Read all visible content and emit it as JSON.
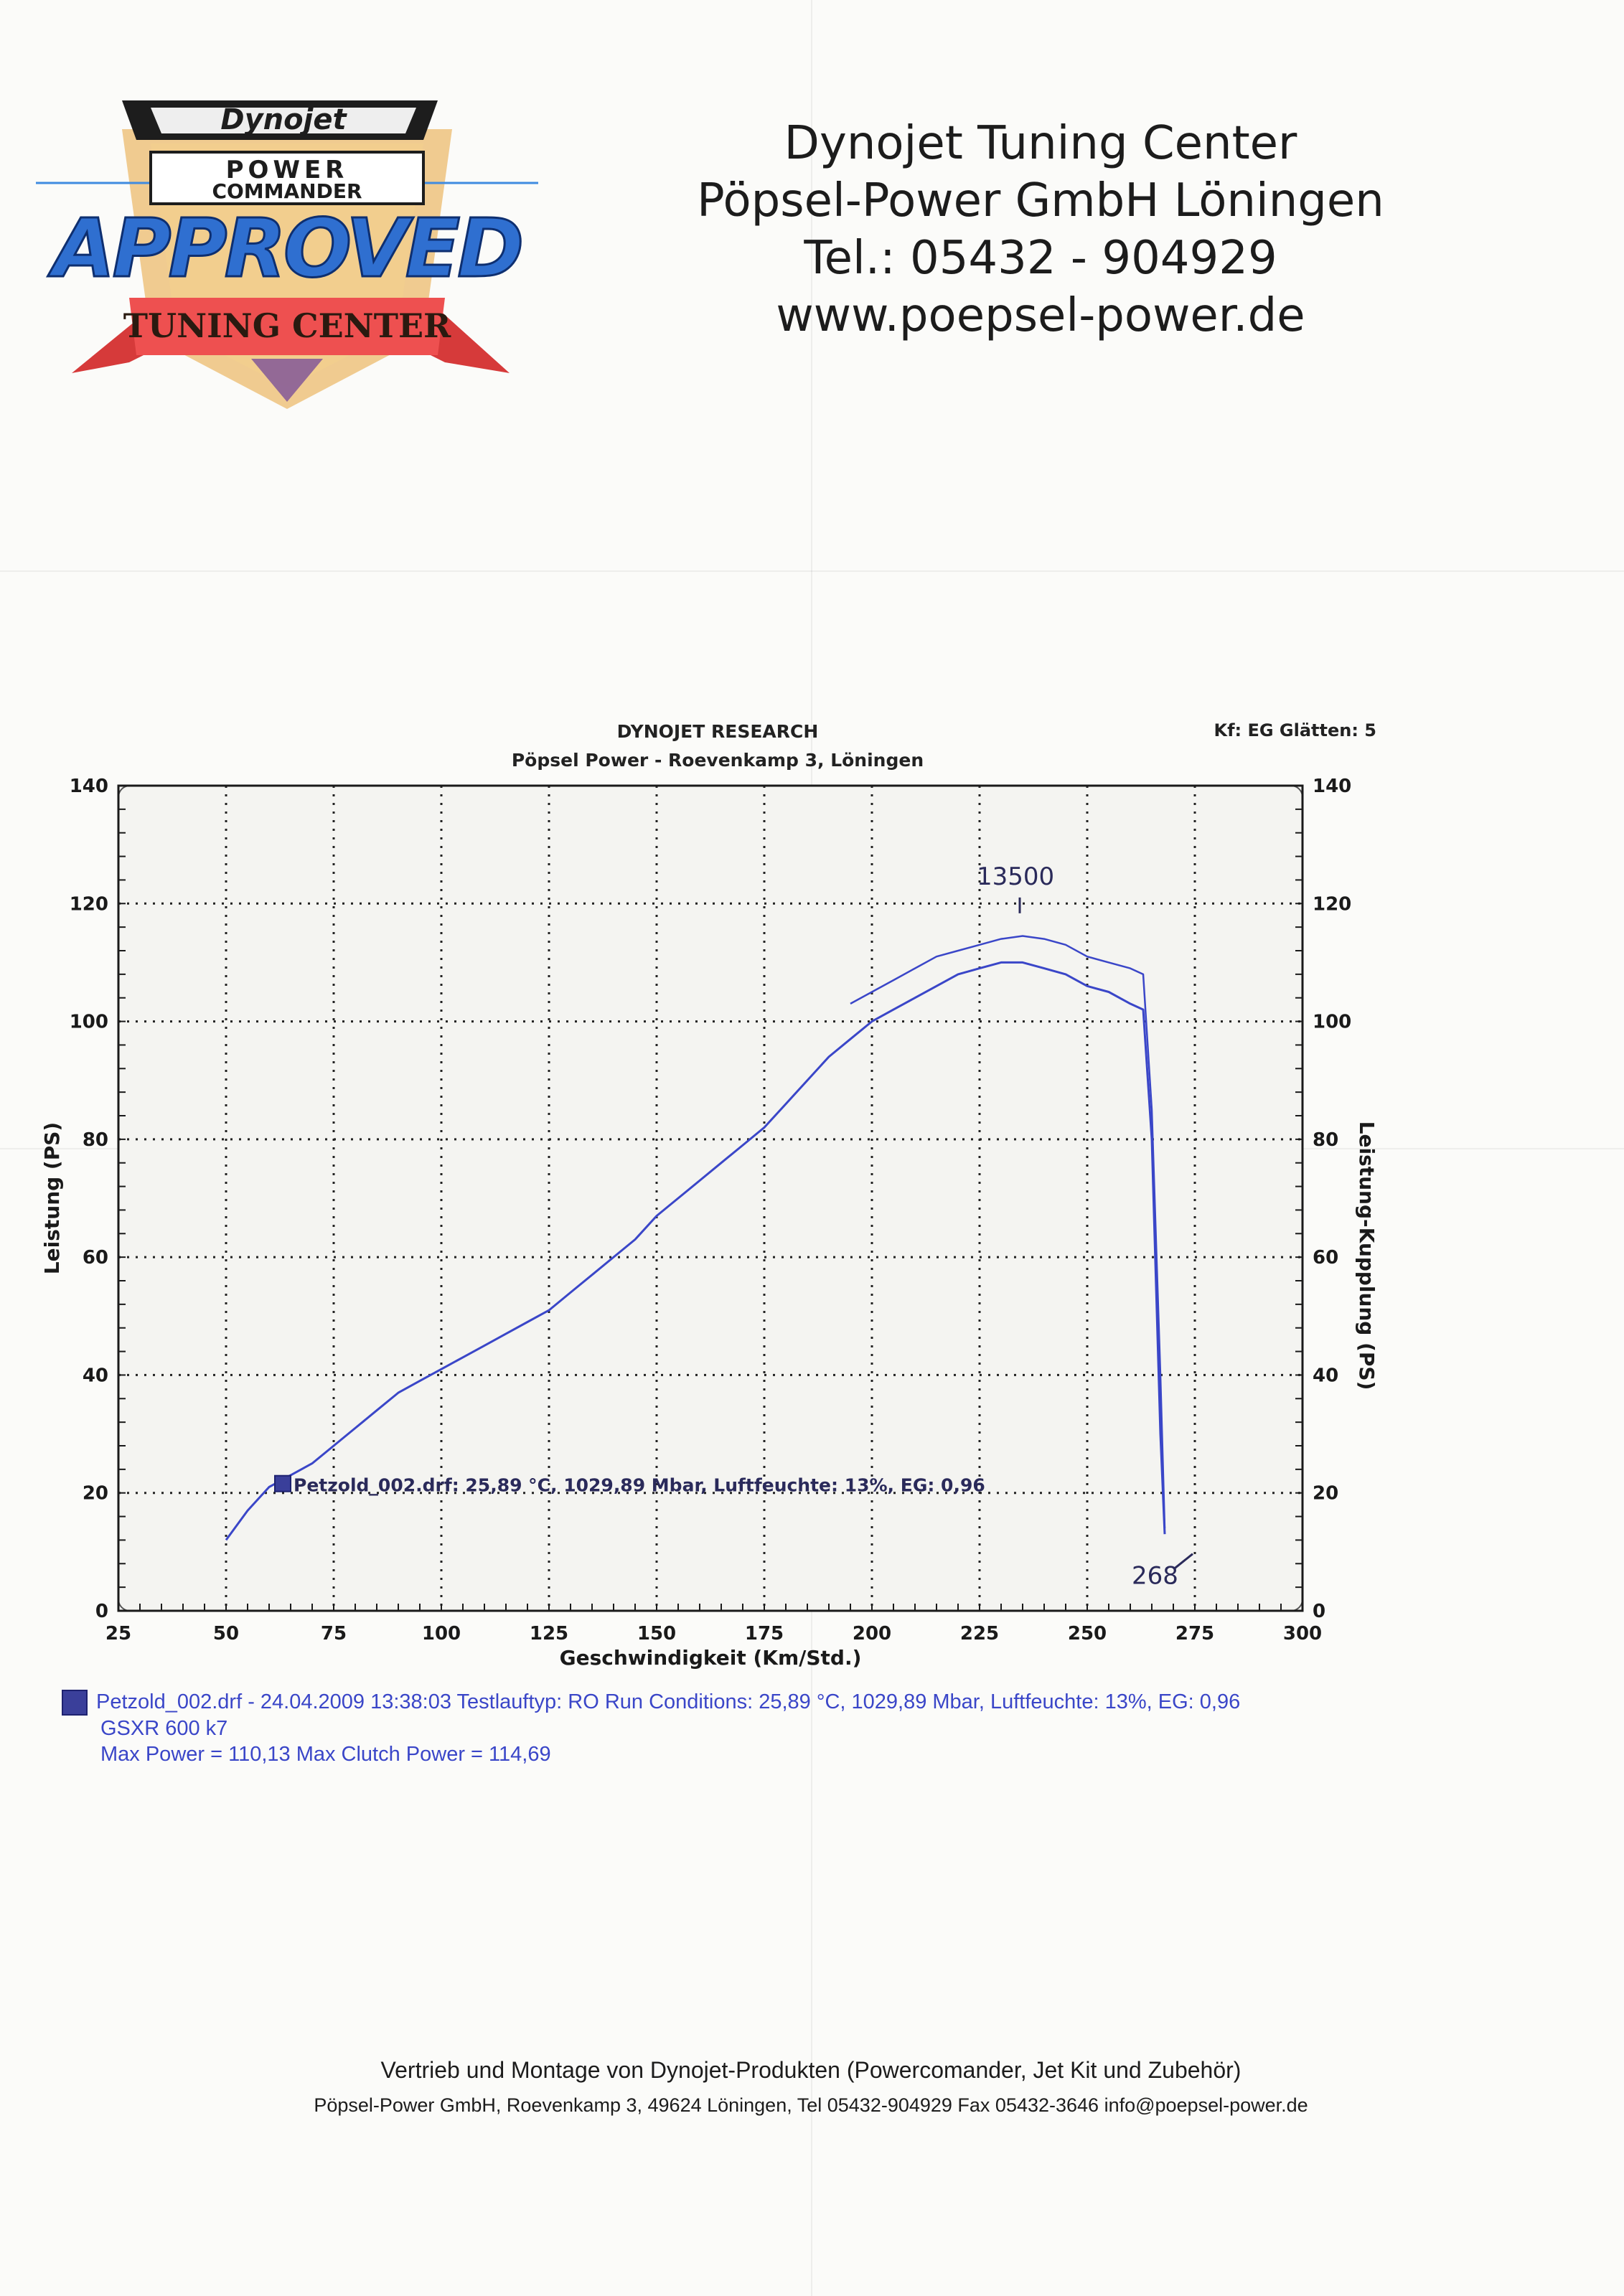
{
  "logo": {
    "brand": "Dynojet",
    "line1": "POWER",
    "line2": "COMMANDER",
    "approved": "APPROVED",
    "ribbon": "TUNING CENTER"
  },
  "header": {
    "line1": "Dynojet Tuning Center",
    "line2": "Pöpsel-Power GmbH  Löningen",
    "line3": "Tel.: 05432 - 904929",
    "line4": "www.poepsel-power.de"
  },
  "chart_header": {
    "title": "DYNOJET RESEARCH",
    "subtitle": "Pöpsel Power - Roevenkamp 3, Löningen",
    "meta": "Kf: EG  Glätten: 5"
  },
  "chart_data": {
    "type": "line",
    "title": "DYNOJET RESEARCH",
    "subtitle": "Pöpsel Power - Roevenkamp 3, Löningen",
    "xlabel": "Geschwindigkeit (Km/Std.)",
    "ylabel": "Leistung (PS)",
    "ylabel_right": "Leistung-Kupplung (PS)",
    "xlim": [
      25,
      300
    ],
    "ylim": [
      0,
      140
    ],
    "xticks": [
      25,
      50,
      75,
      100,
      125,
      150,
      175,
      200,
      225,
      250,
      275,
      300
    ],
    "yticks": [
      0,
      20,
      40,
      60,
      80,
      100,
      120,
      140
    ],
    "grid": true,
    "series": [
      {
        "name": "Petzold_002.drf",
        "values": [
          [
            50,
            12
          ],
          [
            55,
            17
          ],
          [
            60,
            21
          ],
          [
            65,
            23
          ],
          [
            70,
            25
          ],
          [
            75,
            28
          ],
          [
            80,
            31
          ],
          [
            85,
            34
          ],
          [
            90,
            37
          ],
          [
            95,
            39
          ],
          [
            100,
            41
          ],
          [
            105,
            43
          ],
          [
            110,
            45
          ],
          [
            115,
            47
          ],
          [
            120,
            49
          ],
          [
            125,
            51
          ],
          [
            130,
            54
          ],
          [
            135,
            57
          ],
          [
            140,
            60
          ],
          [
            145,
            63
          ],
          [
            150,
            67
          ],
          [
            155,
            70
          ],
          [
            160,
            73
          ],
          [
            165,
            76
          ],
          [
            170,
            79
          ],
          [
            175,
            82
          ],
          [
            180,
            86
          ],
          [
            185,
            90
          ],
          [
            190,
            94
          ],
          [
            195,
            97
          ],
          [
            200,
            100
          ],
          [
            205,
            102
          ],
          [
            210,
            104
          ],
          [
            215,
            106
          ],
          [
            220,
            108
          ],
          [
            225,
            109
          ],
          [
            230,
            110
          ],
          [
            235,
            110
          ],
          [
            240,
            109
          ],
          [
            245,
            108
          ],
          [
            250,
            106
          ],
          [
            255,
            105
          ],
          [
            260,
            103
          ],
          [
            263,
            102
          ],
          [
            265,
            80
          ],
          [
            267,
            30
          ],
          [
            268,
            13
          ]
        ]
      },
      {
        "name": "Max Clutch Power",
        "values": [
          [
            195,
            103
          ],
          [
            200,
            105
          ],
          [
            205,
            107
          ],
          [
            210,
            109
          ],
          [
            215,
            111
          ],
          [
            220,
            112
          ],
          [
            225,
            113
          ],
          [
            230,
            114
          ],
          [
            235,
            114.5
          ],
          [
            240,
            114
          ],
          [
            245,
            113
          ],
          [
            250,
            111
          ],
          [
            255,
            110
          ],
          [
            260,
            109
          ],
          [
            263,
            108
          ],
          [
            265,
            85
          ],
          [
            267,
            40
          ],
          [
            268,
            14
          ]
        ]
      }
    ],
    "annotations": [
      {
        "text": "Petzold_002.drf: 25,89 °C, 1029,89 Mbar, Luftfeuchte: 13%, EG: 0,96",
        "x": 62,
        "y": 20
      },
      {
        "text": "13500",
        "x": 236,
        "y": 122
      },
      {
        "text": "268",
        "x": 262,
        "y": 6
      }
    ]
  },
  "legend": {
    "line1": "Petzold_002.drf - 24.04.2009 13:38:03  Testlauftyp: RO  Run Conditions: 25,89 °C, 1029,89 Mbar,  Luftfeuchte: 13%, EG: 0,96",
    "line2": "GSXR 600  k7",
    "line3": "Max Power = 110,13  Max Clutch Power = 114,69"
  },
  "footer": {
    "line1": "Vertrieb und Montage  von Dynojet-Produkten (Powercomander, Jet Kit und Zubehör)",
    "line2": "Pöpsel-Power GmbH,  Roevenkamp 3, 49624 Löningen, Tel 05432-904929 Fax 05432-3646 info@poepsel-power.de"
  },
  "colors": {
    "curve": "#3a46c8",
    "annotation": "#2a2a5a",
    "grid": "#222222",
    "logo_blue": "#2f6fd0",
    "logo_red": "#d63a3a",
    "logo_gold": "#e8a43a"
  }
}
